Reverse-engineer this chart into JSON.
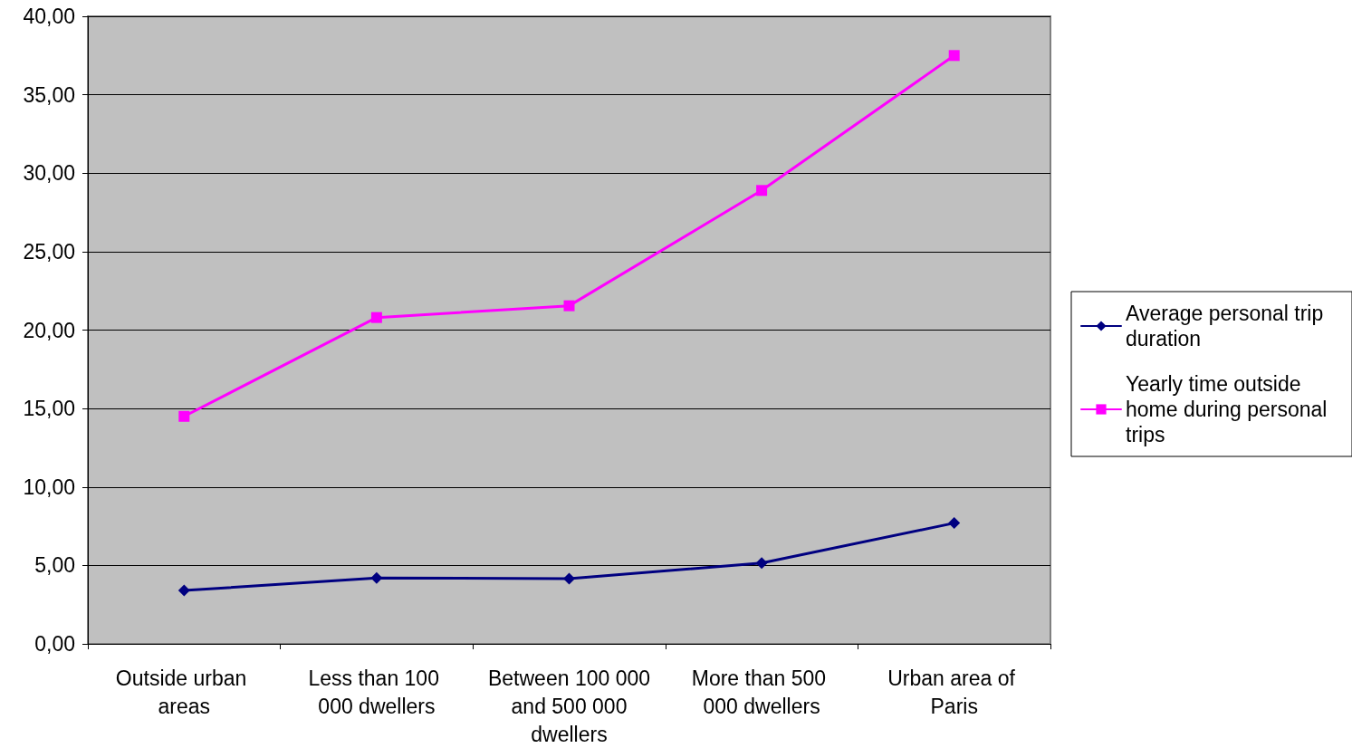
{
  "chart_data": {
    "type": "line",
    "categories": [
      "Outside urban areas",
      "Less than 100 000 dwellers",
      "Between 100 000 and 500 000 dwellers",
      "More than 500 000 dwellers",
      "Urban area of Paris"
    ],
    "series": [
      {
        "name": "Average personal trip duration",
        "color": "#000080",
        "marker": "diamond",
        "values": [
          3.4,
          4.2,
          4.15,
          5.15,
          7.7
        ]
      },
      {
        "name": "Yearly time outside home during personal trips",
        "color": "#ff00ff",
        "marker": "square",
        "values": [
          14.5,
          20.8,
          21.55,
          28.9,
          37.5
        ]
      }
    ],
    "ylim": [
      0,
      40
    ],
    "yticks": [
      {
        "value": 0,
        "label": "0,00"
      },
      {
        "value": 5,
        "label": "5,00"
      },
      {
        "value": 10,
        "label": "10,00"
      },
      {
        "value": 15,
        "label": "15,00"
      },
      {
        "value": 20,
        "label": "20,00"
      },
      {
        "value": 25,
        "label": "25,00"
      },
      {
        "value": 30,
        "label": "30,00"
      },
      {
        "value": 35,
        "label": "35,00"
      },
      {
        "value": 40,
        "label": "40,00"
      }
    ],
    "grid": "y",
    "legend": "right",
    "line_style": "solid"
  }
}
